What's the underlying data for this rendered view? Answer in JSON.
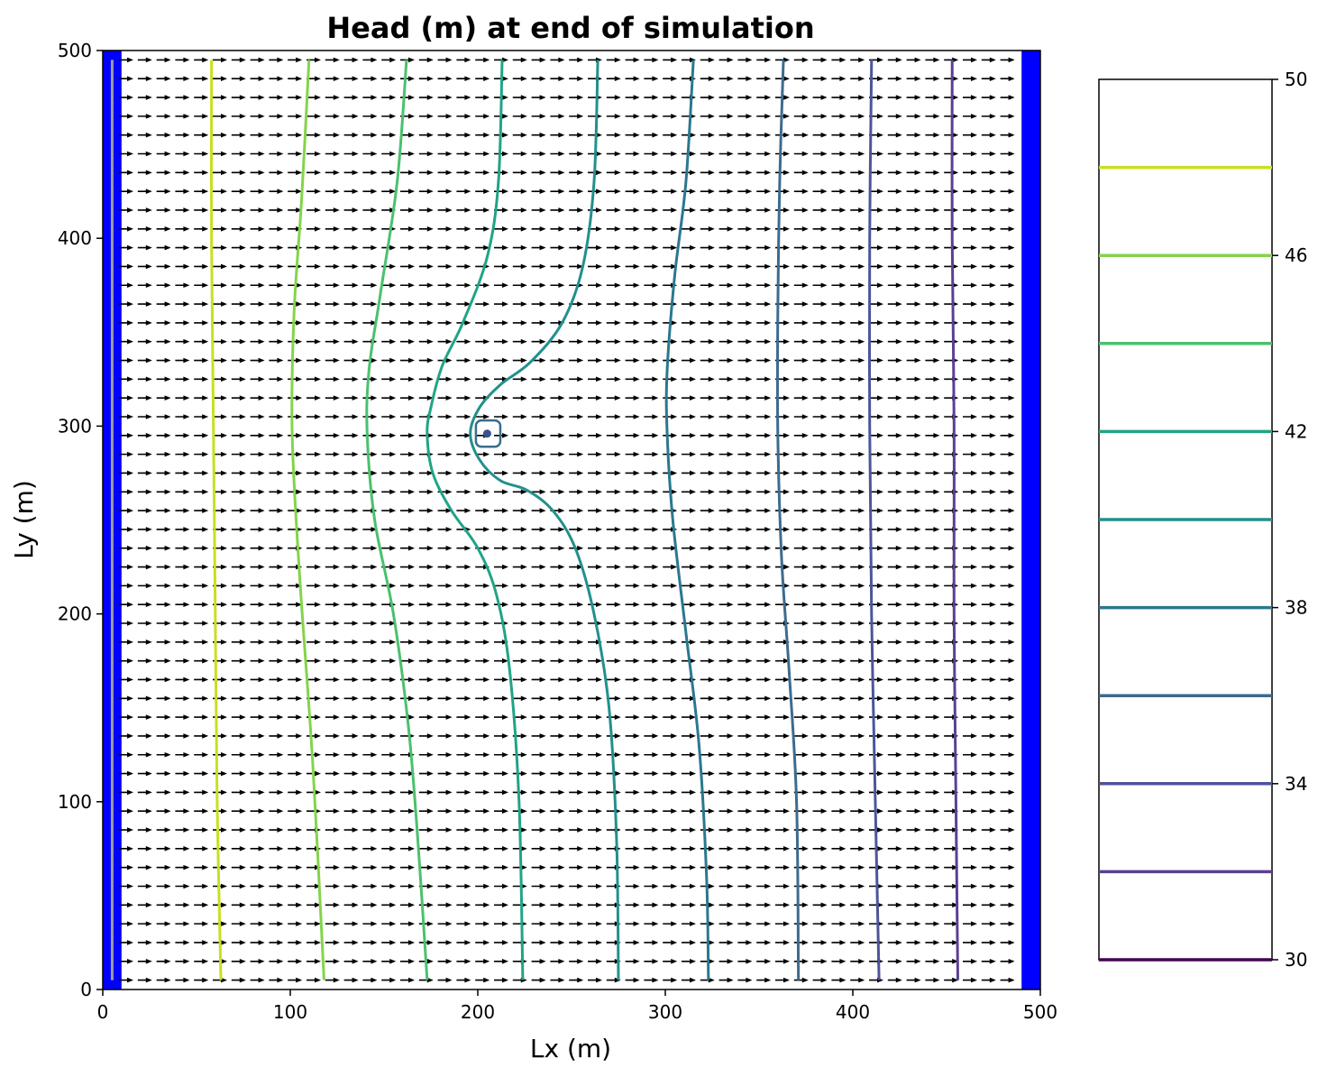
{
  "chart_data": {
    "type": "contour",
    "title": "Head (m) at end of simulation",
    "xlabel": "Lx (m)",
    "ylabel": "Ly (m)",
    "xlim": [
      0,
      500
    ],
    "ylim": [
      0,
      500
    ],
    "xticks": [
      0,
      100,
      200,
      300,
      400,
      500
    ],
    "yticks": [
      0,
      100,
      200,
      300,
      400,
      500
    ],
    "boundary_color": "#0000ff",
    "boundaries": [
      {
        "x": [
          0,
          10
        ],
        "y": [
          0,
          500
        ]
      },
      {
        "x": [
          490,
          500
        ],
        "y": [
          0,
          500
        ]
      }
    ],
    "quiver": {
      "direction": "+x",
      "color": "#000000",
      "x_start": 12.5,
      "x_step": 10,
      "x_end": 487.5,
      "y_start": 5,
      "y_step": 10,
      "y_end": 495
    },
    "well": {
      "x": 205,
      "y": 296,
      "color": "#3b528b"
    },
    "contours": [
      {
        "level": 48,
        "color": "#c8e020",
        "points": [
          [
            58,
            495
          ],
          [
            58,
            400
          ],
          [
            59,
            300
          ],
          [
            60,
            200
          ],
          [
            61,
            100
          ],
          [
            63,
            5
          ]
        ]
      },
      {
        "level": 46,
        "color": "#84d44b",
        "points": [
          [
            110,
            495
          ],
          [
            106,
            420
          ],
          [
            102,
            360
          ],
          [
            101,
            296
          ],
          [
            105,
            220
          ],
          [
            112,
            120
          ],
          [
            118,
            5
          ]
        ]
      },
      {
        "level": 44,
        "color": "#4ac16d",
        "points": [
          [
            162,
            495
          ],
          [
            157,
            430
          ],
          [
            148,
            370
          ],
          [
            142,
            330
          ],
          [
            141,
            296
          ],
          [
            145,
            250
          ],
          [
            155,
            200
          ],
          [
            163,
            140
          ],
          [
            168,
            80
          ],
          [
            173,
            5
          ]
        ]
      },
      {
        "level": 42,
        "color": "#20a486",
        "points": [
          [
            213,
            495
          ],
          [
            211,
            430
          ],
          [
            205,
            390
          ],
          [
            192,
            355
          ],
          [
            181,
            332
          ],
          [
            175,
            310
          ],
          [
            173,
            296
          ],
          [
            176,
            275
          ],
          [
            186,
            255
          ],
          [
            200,
            235
          ],
          [
            210,
            210
          ],
          [
            217,
            170
          ],
          [
            222,
            100
          ],
          [
            224,
            5
          ]
        ]
      },
      {
        "level": 40,
        "color": "#22908c",
        "points": [
          [
            264,
            495
          ],
          [
            262,
            430
          ],
          [
            256,
            385
          ],
          [
            245,
            355
          ],
          [
            228,
            334
          ],
          [
            212,
            322
          ],
          [
            201,
            310
          ],
          [
            196,
            296
          ],
          [
            201,
            282
          ],
          [
            212,
            271
          ],
          [
            226,
            266
          ],
          [
            240,
            255
          ],
          [
            252,
            235
          ],
          [
            262,
            200
          ],
          [
            270,
            150
          ],
          [
            274,
            80
          ],
          [
            275,
            5
          ]
        ]
      },
      {
        "level": 38,
        "color": "#2a788e",
        "points": [
          [
            315,
            495
          ],
          [
            311,
            430
          ],
          [
            305,
            380
          ],
          [
            301,
            330
          ],
          [
            301,
            296
          ],
          [
            304,
            250
          ],
          [
            311,
            190
          ],
          [
            318,
            130
          ],
          [
            322,
            60
          ],
          [
            323,
            5
          ]
        ]
      },
      {
        "level": 36,
        "color": "#3d6b8e",
        "points": [
          [
            363,
            495
          ],
          [
            361,
            430
          ],
          [
            360,
            360
          ],
          [
            360,
            296
          ],
          [
            362,
            230
          ],
          [
            366,
            170
          ],
          [
            370,
            100
          ],
          [
            371,
            5
          ]
        ]
      },
      {
        "level": 34,
        "color": "#4c559a",
        "points": [
          [
            410,
            495
          ],
          [
            409,
            400
          ],
          [
            409,
            300
          ],
          [
            410,
            200
          ],
          [
            412,
            100
          ],
          [
            414,
            5
          ]
        ]
      },
      {
        "level": 32,
        "color": "#5b3f94",
        "points": [
          [
            453,
            495
          ],
          [
            453,
            400
          ],
          [
            454,
            300
          ],
          [
            454,
            200
          ],
          [
            455,
            100
          ],
          [
            456,
            5
          ]
        ]
      },
      {
        "level": 50,
        "color": "#a0a0a0",
        "points": [
          [
            5,
            495
          ],
          [
            5,
            5
          ]
        ]
      }
    ],
    "well_rings": [
      {
        "level": 40,
        "color": "#3b6d8c",
        "x": [
          199,
          212
        ],
        "y": [
          289,
          303
        ]
      }
    ],
    "colorbar": {
      "levels": [
        30,
        32,
        34,
        36,
        38,
        40,
        42,
        44,
        46,
        48,
        50
      ],
      "colors": [
        "#440154",
        "#5b3f94",
        "#4c559a",
        "#3d6b8e",
        "#2a788e",
        "#22908c",
        "#20a486",
        "#4ac16d",
        "#84d44b",
        "#c8e020",
        "#ffffff"
      ],
      "ticks": [
        30,
        34,
        38,
        42,
        46,
        50
      ]
    }
  }
}
